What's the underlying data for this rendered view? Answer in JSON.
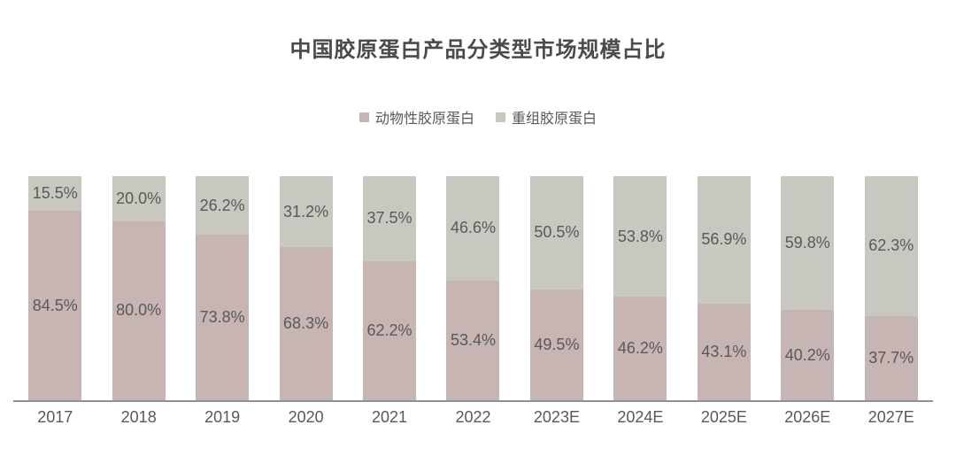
{
  "chart_data": {
    "type": "bar",
    "stacked": true,
    "orientation": "vertical",
    "title": "中国胶原蛋白产品分类型市场规模占比",
    "categories": [
      "2017",
      "2018",
      "2019",
      "2020",
      "2021",
      "2022",
      "2023E",
      "2024E",
      "2025E",
      "2026E",
      "2027E"
    ],
    "series": [
      {
        "name": "动物性胶原蛋白",
        "color": "#c6b5b3",
        "position": "bottom",
        "values": [
          84.5,
          80.0,
          73.8,
          68.3,
          62.2,
          53.4,
          49.5,
          46.2,
          43.1,
          40.2,
          37.7
        ],
        "labels": [
          "84.5%",
          "80.0%",
          "73.8%",
          "68.3%",
          "62.2%",
          "53.4%",
          "49.5%",
          "46.2%",
          "43.1%",
          "40.2%",
          "37.7%"
        ]
      },
      {
        "name": "重组胶原蛋白",
        "color": "#c8c8c0",
        "position": "top",
        "values": [
          15.5,
          20.0,
          26.2,
          31.2,
          37.5,
          46.6,
          50.5,
          53.8,
          56.9,
          59.8,
          62.3
        ],
        "labels": [
          "15.5%",
          "20.0%",
          "26.2%",
          "31.2%",
          "37.5%",
          "46.6%",
          "50.5%",
          "53.8%",
          "56.9%",
          "59.8%",
          "62.3%"
        ]
      }
    ],
    "value_suffix": "%",
    "ylim": [
      0,
      100
    ],
    "grid": false,
    "y_axis_visible": false,
    "legend_position": "top",
    "axis_line_color": "#8d939b",
    "label_color": "#595959",
    "title_color": "#4a4a4a",
    "background_color": "#ffffff"
  }
}
